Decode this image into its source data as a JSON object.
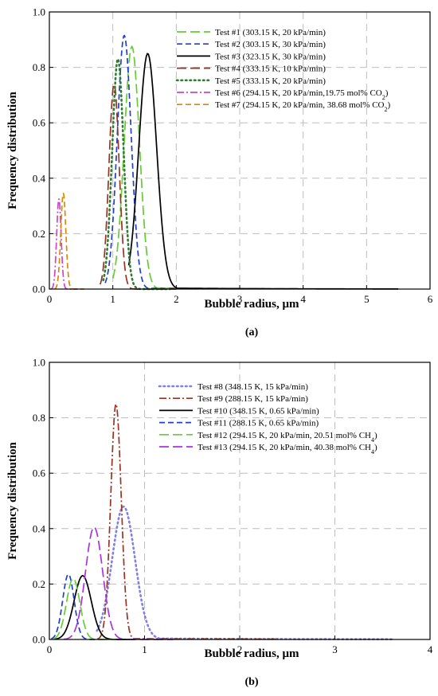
{
  "chart_data": [
    {
      "type": "line",
      "panel_label": "(a)",
      "xlabel": "Bubble radius, μm",
      "ylabel": "Frequency distribution",
      "xlim": [
        0,
        6
      ],
      "ylim": [
        0,
        1.0
      ],
      "xticks": [
        0,
        1,
        2,
        3,
        4,
        5,
        6
      ],
      "yticks": [
        0.0,
        0.2,
        0.4,
        0.6,
        0.8,
        1.0
      ],
      "tick_labels_x": [
        "0",
        "1",
        "2",
        "3",
        "4",
        "5",
        "6"
      ],
      "tick_labels_y": [
        "0.0",
        "0.2",
        "0.4",
        "0.6",
        "0.8",
        "1.0"
      ],
      "grid": true,
      "legend_position": "top-right",
      "series": [
        {
          "name": "Test #1 (303.15 K, 20 kPa/min)",
          "color": "#66cc33",
          "dash": "long-dash",
          "peak_x": 1.3,
          "peak_y": 0.875,
          "spread": 0.12,
          "x_start": 1.0,
          "x_end": 3.9,
          "tail": 0.005
        },
        {
          "name": "Test #2 (303.15 K, 30 kPa/min)",
          "color": "#1f3fd0",
          "dash": "dash",
          "peak_x": 1.18,
          "peak_y": 0.915,
          "spread": 0.11,
          "x_start": 0.88,
          "x_end": 3.0,
          "tail": 0.004
        },
        {
          "name": "Test #3 (323.15 K, 30 kPa/min)",
          "color": "#000000",
          "dash": "solid",
          "peak_x": 1.55,
          "peak_y": 0.85,
          "spread": 0.14,
          "x_start": 1.25,
          "x_end": 5.5,
          "tail": 0.004
        },
        {
          "name": "Test #4 (333.15 K, 10 kPa/min)",
          "color": "#993322",
          "dash": "long-dash",
          "peak_x": 1.02,
          "peak_y": 0.74,
          "spread": 0.08,
          "x_start": 0.8,
          "x_end": 2.0,
          "tail": 0.0
        },
        {
          "name": "Test #5 (333.15 K, 20 kPa/min)",
          "color": "#2e7d32",
          "dash": "dot",
          "peak_x": 1.08,
          "peak_y": 0.83,
          "spread": 0.09,
          "x_start": 0.85,
          "x_end": 1.9,
          "tail": 0.0
        },
        {
          "name": "Test #6 (294.15 K, 20 kPa/min,19.75 mol% CO",
          "subscript": "2",
          "closing": ")",
          "color": "#cc44cc",
          "dash": "dash-dot",
          "peak_x": 0.15,
          "peak_y": 0.325,
          "spread": 0.035,
          "x_start": 0.02,
          "x_end": 0.45,
          "tail": 0.0
        },
        {
          "name": "Test #7 (294.15 K, 20 kPa/min, 38.68 mol% CO",
          "subscript": "2",
          "closing": ")",
          "color": "#dd8800",
          "dash": "dash",
          "peak_x": 0.22,
          "peak_y": 0.345,
          "spread": 0.04,
          "x_start": 0.08,
          "x_end": 0.55,
          "tail": 0.0
        }
      ]
    },
    {
      "type": "line",
      "panel_label": "(b)",
      "xlabel": "Bubble radius, μm",
      "ylabel": "Frequency distribution",
      "xlim": [
        0,
        4
      ],
      "ylim": [
        0,
        1.0
      ],
      "xticks": [
        0,
        1,
        2,
        3,
        4
      ],
      "yticks": [
        0.0,
        0.2,
        0.4,
        0.6,
        0.8,
        1.0
      ],
      "tick_labels_x": [
        "0",
        "1",
        "2",
        "3",
        "4"
      ],
      "tick_labels_y": [
        "0.0",
        "0.2",
        "0.4",
        "0.6",
        "0.8",
        "1.0"
      ],
      "grid": true,
      "legend_position": "top-right",
      "series": [
        {
          "name": "Test #8 (348.15 K, 15 kPa/min)",
          "color": "#7f7fe6",
          "dash": "dot",
          "peak_x": 0.78,
          "peak_y": 0.48,
          "spread": 0.12,
          "x_start": 0.5,
          "x_end": 3.6,
          "tail": 0.004
        },
        {
          "name": "Test #9 (288.15 K, 15 kPa/min)",
          "color": "#993322",
          "dash": "dash-dot",
          "peak_x": 0.7,
          "peak_y": 0.85,
          "spread": 0.055,
          "x_start": 0.5,
          "x_end": 2.4,
          "tail": 0.003
        },
        {
          "name": "Test #10 (348.15 K, 0.65 kPa/min)",
          "color": "#000000",
          "dash": "solid",
          "peak_x": 0.35,
          "peak_y": 0.23,
          "spread": 0.09,
          "x_start": 0.05,
          "x_end": 0.9,
          "tail": 0.0
        },
        {
          "name": "Test #11 (288.15 K, 0.65 kPa/min)",
          "color": "#1f3fd0",
          "dash": "dash",
          "peak_x": 0.2,
          "peak_y": 0.235,
          "spread": 0.06,
          "x_start": 0.02,
          "x_end": 0.6,
          "tail": 0.0
        },
        {
          "name": "Test #12 (294.15 K, 20 kPa/min, 20.51 mol% CH",
          "subscript": "4",
          "closing": ")",
          "color": "#66cc33",
          "dash": "long-dash",
          "peak_x": 0.25,
          "peak_y": 0.22,
          "spread": 0.07,
          "x_start": 0.04,
          "x_end": 0.7,
          "tail": 0.0
        },
        {
          "name": "Test #13 (294.15 K, 20 kPa/min, 40.38 mol% CH",
          "subscript": "4",
          "closing": ")",
          "color": "#aa33dd",
          "dash": "long-dash",
          "peak_x": 0.47,
          "peak_y": 0.405,
          "spread": 0.09,
          "x_start": 0.15,
          "x_end": 1.3,
          "tail": 0.0
        }
      ]
    }
  ]
}
